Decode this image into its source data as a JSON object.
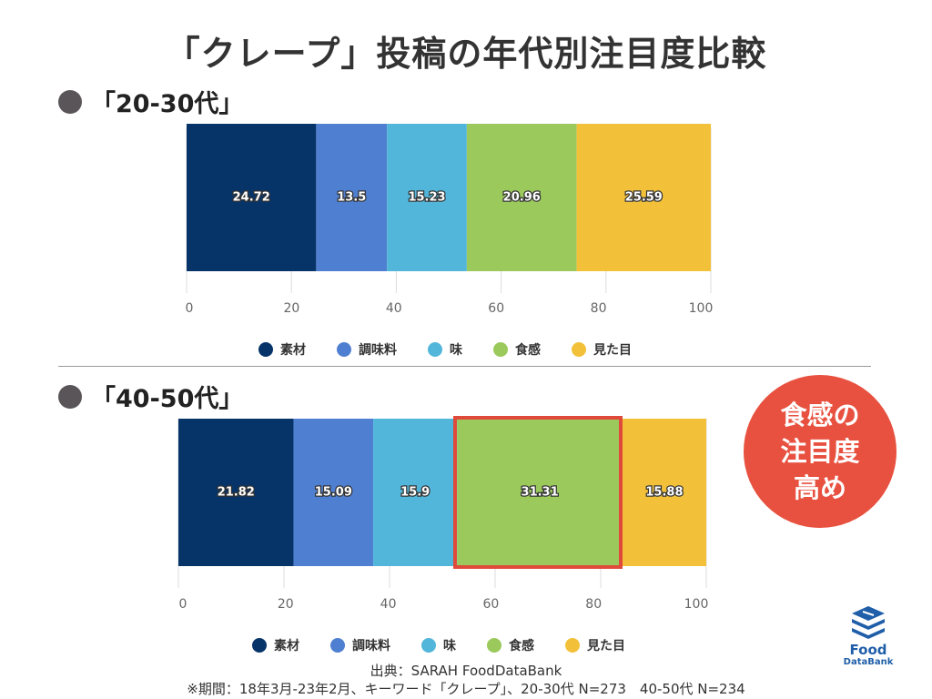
{
  "title": "「クレープ」投稿の年代別注目度比較",
  "colors": {
    "素材": "#063469",
    "調味料": "#4f7fd1",
    "味": "#52b6da",
    "食感": "#9bc95c",
    "見た目": "#f3c139",
    "callout": "#e8513f",
    "highlight": "#e04a3a"
  },
  "chart_data": [
    {
      "type": "bar",
      "orientation": "horizontal-stacked",
      "title": "「20-30代」",
      "categories": [
        "20-30代"
      ],
      "series": [
        {
          "name": "素材",
          "values": [
            24.72
          ]
        },
        {
          "name": "調味料",
          "values": [
            13.5
          ]
        },
        {
          "name": "味",
          "values": [
            15.23
          ]
        },
        {
          "name": "食感",
          "values": [
            20.96
          ]
        },
        {
          "name": "見た目",
          "values": [
            25.59
          ]
        }
      ],
      "value_labels": [
        "24.72",
        "13.5",
        "15.23",
        "20.96",
        "25.59"
      ],
      "xlim": [
        0,
        100
      ],
      "xticks": [
        "0",
        "20",
        "40",
        "60",
        "80",
        "100"
      ],
      "legend": "bottom"
    },
    {
      "type": "bar",
      "orientation": "horizontal-stacked",
      "title": "「40-50代」",
      "categories": [
        "40-50代"
      ],
      "series": [
        {
          "name": "素材",
          "values": [
            21.82
          ]
        },
        {
          "name": "調味料",
          "values": [
            15.09
          ]
        },
        {
          "name": "味",
          "values": [
            15.9
          ]
        },
        {
          "name": "食感",
          "values": [
            31.31
          ]
        },
        {
          "name": "見た目",
          "values": [
            15.88
          ]
        }
      ],
      "value_labels": [
        "21.82",
        "15.09",
        "15.9",
        "31.31",
        "15.88"
      ],
      "xlim": [
        0,
        100
      ],
      "xticks": [
        "0",
        "20",
        "40",
        "60",
        "80",
        "100"
      ],
      "legend": "bottom",
      "highlighted_series": "食感"
    }
  ],
  "legend_labels": [
    "素材",
    "調味料",
    "味",
    "食感",
    "見た目"
  ],
  "callout": {
    "line1": "食感の",
    "line2": "注目度",
    "line3": "高め"
  },
  "source": {
    "line1": "出典：SARAH FoodDataBank",
    "line2": "※期間：18年3月-23年2月、キーワード「クレープ」、20-30代 N=273　40-50代 N=234"
  },
  "logo": {
    "line1": "Food",
    "line2": "DataBank"
  }
}
